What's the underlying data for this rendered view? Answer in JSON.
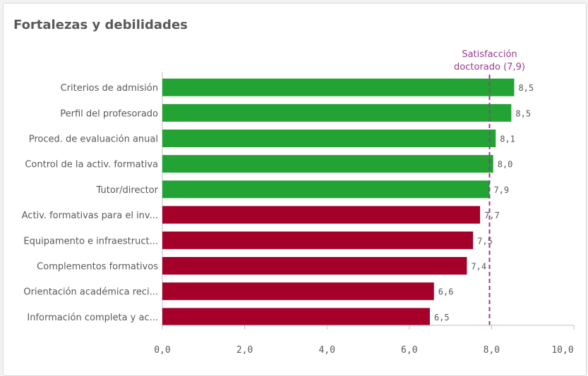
{
  "card": {
    "title": "Fortalezas y debilidades"
  },
  "chart_data": {
    "type": "bar",
    "orientation": "horizontal",
    "categories": [
      "Criterios de admisión",
      "Perfil del profesorado",
      "Proced. de evaluación anual",
      "Control de la activ. formativa",
      "Tutor/director",
      "Activ. formativas para el inv...",
      "Equipamento e infraestruct...",
      "Complementos formativos",
      "Orientación académica reci...",
      "Información completa y ac..."
    ],
    "values": [
      8.55,
      8.48,
      8.1,
      8.04,
      7.95,
      7.72,
      7.55,
      7.4,
      6.6,
      6.5
    ],
    "value_labels": [
      "8,5",
      "8,5",
      "8,1",
      "8,0",
      "7,9",
      "7,7",
      "7,5",
      "7,4",
      "6,6",
      "6,5"
    ],
    "colors": [
      "#22a333",
      "#22a333",
      "#22a333",
      "#22a333",
      "#22a333",
      "#a4002a",
      "#a4002a",
      "#a4002a",
      "#a4002a",
      "#a4002a"
    ],
    "xlim": [
      0,
      10
    ],
    "xticks": [
      0,
      2,
      4,
      6,
      8,
      10
    ],
    "xtick_labels": [
      "0,0",
      "2,0",
      "4,0",
      "6,0",
      "8,0",
      "10,0"
    ],
    "reference_line": {
      "value": 7.95,
      "label_line1": "Satisfacción",
      "label_line2": "doctorado (7,9)",
      "color": "#9b3b8f"
    },
    "grid": false,
    "legend": "none"
  }
}
